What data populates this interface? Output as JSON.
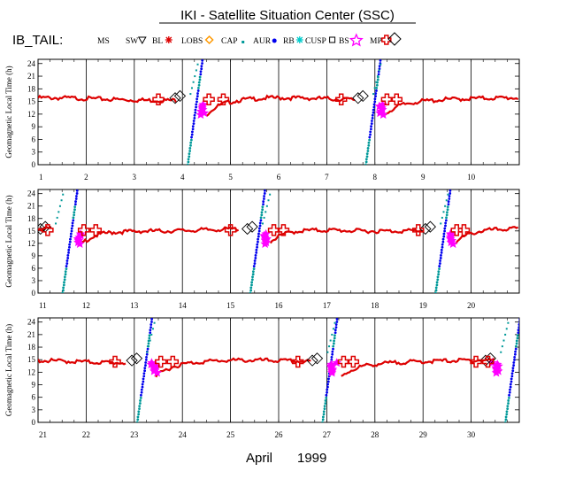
{
  "title": "IKI - Satellite Situation Center (SSC)",
  "month_label": "April",
  "year_label": "1999",
  "spacecraft_label": "IB_TAIL:",
  "chart_data": {
    "type": "scatter",
    "ylabel": "Geomagnetic Local Time (h)",
    "ylim": [
      0,
      25
    ],
    "y_ticks": [
      "0",
      "3",
      "6",
      "9",
      "12",
      "15",
      "18",
      "21",
      "24"
    ],
    "legend": [
      {
        "name": "MS",
        "marker": "none",
        "color": "#000000"
      },
      {
        "name": "SW",
        "marker": "triangle-down",
        "color": "#000000"
      },
      {
        "name": "BL",
        "marker": "asterisk",
        "color": "#dd0000"
      },
      {
        "name": "LOBS",
        "marker": "diamond",
        "color": "#ff9900"
      },
      {
        "name": "CAP",
        "marker": "square",
        "color": "#009999"
      },
      {
        "name": "AUR",
        "marker": "dot",
        "color": "#0000ee"
      },
      {
        "name": "RB",
        "marker": "asterisk",
        "color": "#00cccc"
      },
      {
        "name": "CUSP",
        "marker": "square-open",
        "color": "#000000"
      },
      {
        "name": "BS",
        "marker": "star",
        "color": "#ff00ff"
      },
      {
        "name": "MP",
        "marker": "cross-open",
        "color": "#dd0000"
      }
    ],
    "panels": [
      {
        "xlim": [
          1,
          11
        ],
        "x_ticks": [
          "1",
          "2",
          "3",
          "4",
          "5",
          "6",
          "7",
          "8",
          "9",
          "10"
        ],
        "orbits": [
          {
            "rise_day": 4.15,
            "bs_day": 4.42,
            "mp_days": [
              3.5,
              4.55,
              4.85
            ],
            "cusp_day": 3.85,
            "dayside_level": 15.8
          },
          {
            "rise_day": 7.85,
            "bs_day": 8.2,
            "mp_days": [
              7.3,
              8.25,
              8.45
            ],
            "cusp_day": 7.65,
            "dayside_level": 15.8
          }
        ]
      },
      {
        "xlim": [
          11,
          21
        ],
        "x_ticks": [
          "11",
          "12",
          "13",
          "14",
          "15",
          "16",
          "17",
          "18",
          "19",
          "20"
        ],
        "orbits": [
          {
            "rise_day": 11.55,
            "bs_day": 11.85,
            "mp_days": [
              11.2,
              11.95,
              12.2
            ],
            "cusp_day": 11.05,
            "dayside_level": 15.5
          },
          {
            "rise_day": 15.45,
            "bs_day": 15.8,
            "mp_days": [
              15.0,
              15.9,
              16.1
            ],
            "cusp_day": 15.35,
            "dayside_level": 15.5
          },
          {
            "rise_day": 19.3,
            "bs_day": 19.6,
            "mp_days": [
              18.9,
              19.7,
              19.85
            ],
            "cusp_day": 19.05,
            "dayside_level": 15.5
          }
        ]
      },
      {
        "xlim": [
          21,
          31
        ],
        "x_ticks": [
          "21",
          "22",
          "23",
          "24",
          "25",
          "26",
          "27",
          "28",
          "29",
          "30"
        ],
        "orbits": [
          {
            "rise_day": 23.1,
            "bs_day": 23.45,
            "mp_days": [
              22.6,
              23.55,
              23.8
            ],
            "cusp_day": 22.95,
            "dayside_level": 14.8
          },
          {
            "rise_day": 26.95,
            "bs_day": 27.2,
            "mp_days": [
              26.4,
              27.35,
              27.55
            ],
            "cusp_day": 26.7,
            "dayside_level": 14.8
          },
          {
            "rise_day": 30.75,
            "bs_day": 30.55,
            "mp_days": [
              30.1,
              30.35
            ],
            "cusp_day": 30.3,
            "dayside_level": 14.8
          }
        ]
      }
    ]
  }
}
